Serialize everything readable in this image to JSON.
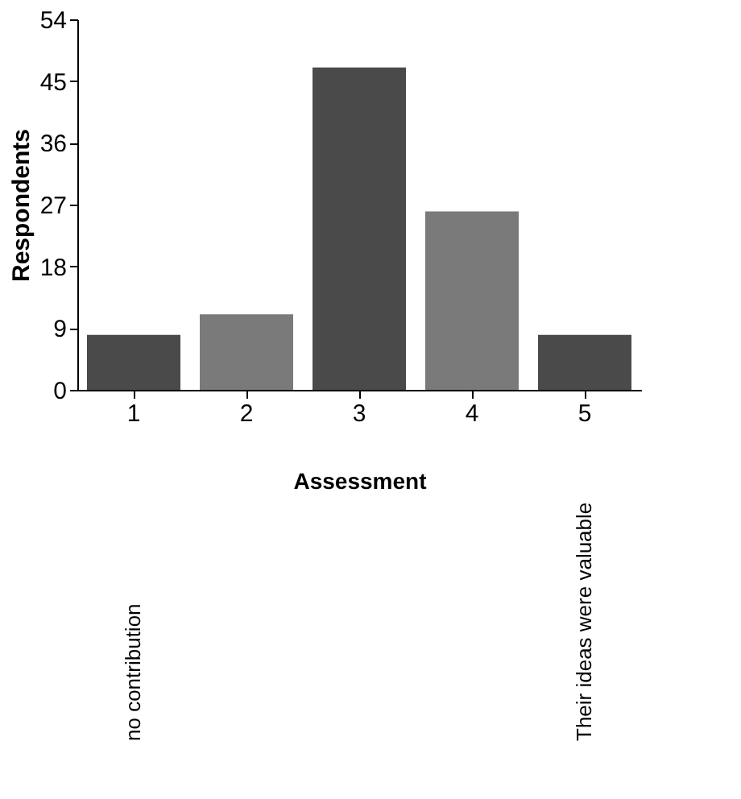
{
  "chart_data": {
    "type": "bar",
    "xlabel": "Assessment",
    "ylabel": "Respondents",
    "categories": [
      "1",
      "2",
      "3",
      "4",
      "5"
    ],
    "values": [
      8,
      11,
      47,
      26,
      8
    ],
    "colors": [
      "#4a4a4a",
      "#7a7a7a",
      "#4a4a4a",
      "#7a7a7a",
      "#4a4a4a"
    ],
    "ylim": [
      0,
      54
    ],
    "yticks": [
      0,
      9,
      18,
      27,
      36,
      45,
      54
    ],
    "grid": false,
    "annotations": [
      "no contribution",
      "Their ideas were valuable"
    ]
  }
}
